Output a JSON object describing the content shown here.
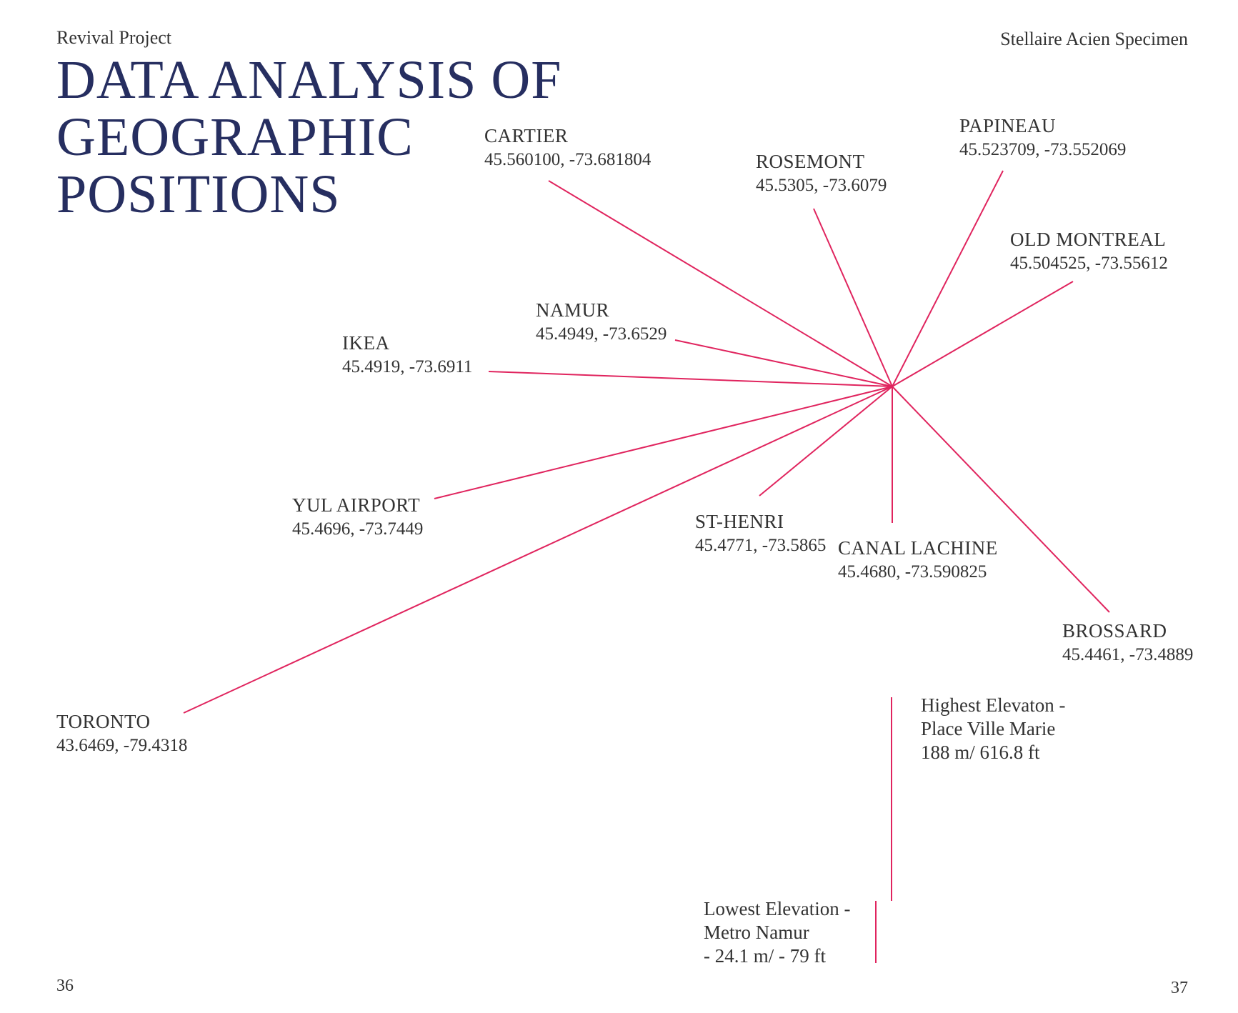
{
  "header": {
    "left": "Revival Project",
    "right": "Stellaire Acien Specimen"
  },
  "title": [
    "DATA ANALYSIS OF",
    "GEOGRAPHIC",
    "POSITIONS"
  ],
  "colors": {
    "title": "#262e60",
    "line": "#e0245e",
    "text": "#333333"
  },
  "places": {
    "cartier": {
      "name": "CARTIER",
      "coords": "45.560100, -73.681804"
    },
    "rosemont": {
      "name": "ROSEMONT",
      "coords": "45.5305, -73.6079"
    },
    "papineau": {
      "name": "PAPINEAU",
      "coords": "45.523709, -73.552069"
    },
    "old_montreal": {
      "name": "OLD MONTREAL",
      "coords": "45.504525, -73.55612"
    },
    "namur": {
      "name": "NAMUR",
      "coords": "45.4949, -73.6529"
    },
    "ikea": {
      "name": "IKEA",
      "coords": "45.4919, -73.6911"
    },
    "yul_airport": {
      "name": "YUL AIRPORT",
      "coords": "45.4696, -73.7449"
    },
    "st_henri": {
      "name": "ST-HENRI",
      "coords": "45.4771, -73.5865"
    },
    "canal_lachine": {
      "name": "CANAL LACHINE",
      "coords": "45.4680, -73.590825"
    },
    "brossard": {
      "name": "BROSSARD",
      "coords": "45.4461, -73.4889"
    },
    "toronto": {
      "name": "TORONTO",
      "coords": "43.6469, -79.4318"
    }
  },
  "elevation": {
    "highest": [
      "Highest Elevaton -",
      "Place Ville Marie",
      "188 m/ 616.8 ft"
    ],
    "lowest": [
      "Lowest Elevation -",
      "Metro Namur",
      "- 24.1 m/ - 79 ft"
    ]
  },
  "page_numbers": {
    "left": "36",
    "right": "37"
  }
}
